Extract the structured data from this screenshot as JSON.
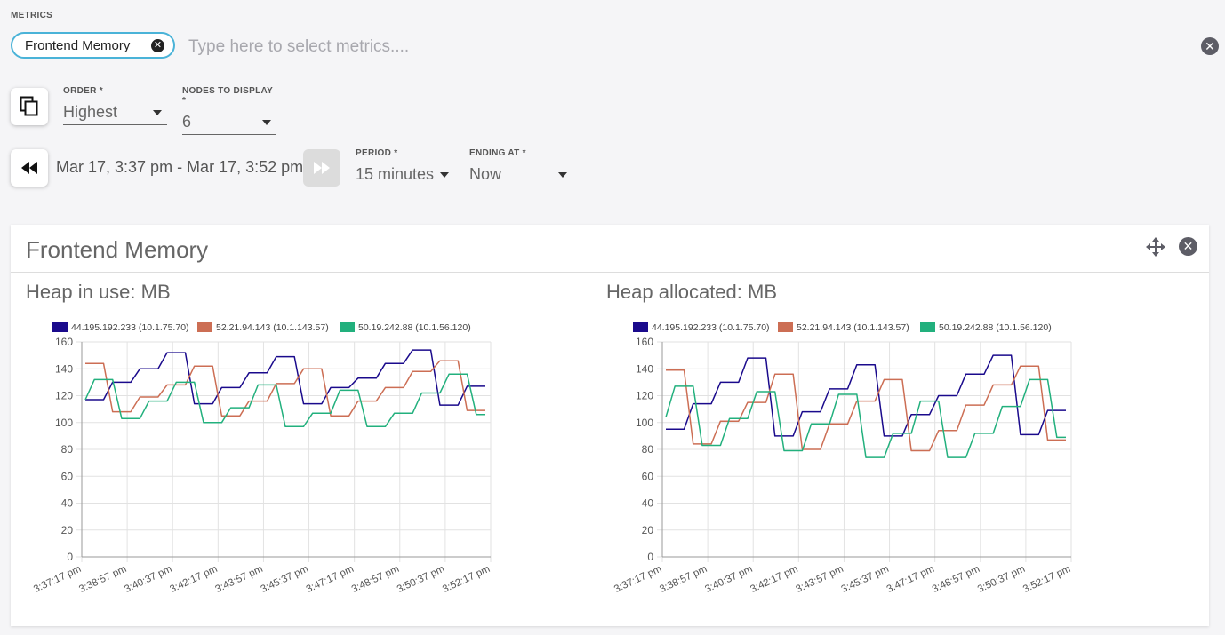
{
  "metrics": {
    "label": "METRICS",
    "chip": "Frontend Memory",
    "placeholder": "Type here to select metrics...."
  },
  "order": {
    "label": "ORDER *",
    "value": "Highest"
  },
  "nodes": {
    "label": "NODES TO DISPLAY *",
    "value": "6"
  },
  "time_range": "Mar 17, 3:37 pm - Mar 17, 3:52 pm",
  "period": {
    "label": "PERIOD *",
    "value": "15 minutes"
  },
  "ending": {
    "label": "ENDING AT *",
    "value": "Now"
  },
  "card": {
    "title": "Frontend Memory"
  },
  "colors": {
    "s1": "#1a0a8c",
    "s2": "#cc6e54",
    "s3": "#22b07d",
    "chip_border": "#4ab3d8"
  },
  "icons": [
    "copy-icon",
    "rewind-icon",
    "fast-forward-icon",
    "move-icon",
    "close-icon"
  ],
  "chart_data": [
    {
      "type": "line",
      "title": "Heap in use: MB",
      "ylim": [
        0,
        160
      ],
      "yticks": [
        0,
        20,
        40,
        60,
        80,
        100,
        120,
        140,
        160
      ],
      "xticks": [
        "3:37:17 pm",
        "3:38:57 pm",
        "3:40:37 pm",
        "3:42:17 pm",
        "3:43:57 pm",
        "3:45:37 pm",
        "3:47:17 pm",
        "3:48:57 pm",
        "3:50:37 pm",
        "3:52:17 pm"
      ],
      "grid": true,
      "legend_position": "top",
      "series": [
        {
          "name": "44.195.192.233 (10.1.75.70)",
          "values": [
            117,
            117,
            117,
            130,
            130,
            130,
            140,
            140,
            140,
            152,
            152,
            152,
            114,
            114,
            114,
            126,
            126,
            126,
            137,
            137,
            137,
            149,
            149,
            149,
            114,
            114,
            114,
            126,
            126,
            126,
            133,
            133,
            133,
            144,
            144,
            144,
            154,
            154,
            154,
            113,
            113,
            113,
            127,
            127,
            127
          ]
        },
        {
          "name": "52.21.94.143 (10.1.143.57)",
          "values": [
            144,
            144,
            144,
            108,
            108,
            108,
            119,
            119,
            119,
            128,
            128,
            128,
            142,
            142,
            142,
            105,
            105,
            105,
            116,
            116,
            116,
            129,
            129,
            129,
            140,
            140,
            140,
            105,
            105,
            105,
            116,
            116,
            116,
            126,
            126,
            126,
            138,
            138,
            138,
            146,
            146,
            146,
            109,
            109,
            109
          ]
        },
        {
          "name": "50.19.242.88 (10.1.56.120)",
          "values": [
            117,
            132,
            132,
            132,
            103,
            103,
            103,
            116,
            116,
            116,
            130,
            130,
            130,
            100,
            100,
            100,
            111,
            111,
            111,
            128,
            128,
            128,
            97,
            97,
            97,
            107,
            107,
            107,
            124,
            124,
            124,
            97,
            97,
            97,
            107,
            107,
            107,
            122,
            122,
            122,
            136,
            136,
            136,
            106,
            106
          ]
        }
      ]
    },
    {
      "type": "line",
      "title": "Heap allocated: MB",
      "ylim": [
        0,
        160
      ],
      "yticks": [
        0,
        20,
        40,
        60,
        80,
        100,
        120,
        140,
        160
      ],
      "xticks": [
        "3:37:17 pm",
        "3:38:57 pm",
        "3:40:37 pm",
        "3:42:17 pm",
        "3:43:57 pm",
        "3:45:37 pm",
        "3:47:17 pm",
        "3:48:57 pm",
        "3:50:37 pm",
        "3:52:17 pm"
      ],
      "grid": true,
      "legend_position": "top",
      "series": [
        {
          "name": "44.195.192.233 (10.1.75.70)",
          "values": [
            95,
            95,
            95,
            114,
            114,
            114,
            130,
            130,
            130,
            148,
            148,
            148,
            90,
            90,
            90,
            108,
            108,
            108,
            125,
            125,
            125,
            143,
            143,
            143,
            90,
            90,
            90,
            106,
            106,
            106,
            120,
            120,
            120,
            136,
            136,
            136,
            150,
            150,
            150,
            91,
            91,
            91,
            109,
            109,
            109
          ]
        },
        {
          "name": "52.21.94.143 (10.1.143.57)",
          "values": [
            139,
            139,
            139,
            84,
            84,
            84,
            101,
            101,
            101,
            115,
            115,
            115,
            136,
            136,
            136,
            80,
            80,
            80,
            99,
            99,
            99,
            116,
            116,
            116,
            132,
            132,
            132,
            79,
            79,
            79,
            94,
            94,
            94,
            113,
            113,
            113,
            128,
            128,
            128,
            142,
            142,
            142,
            87,
            87,
            87
          ]
        },
        {
          "name": "50.19.242.88 (10.1.56.120)",
          "values": [
            104,
            127,
            127,
            127,
            83,
            83,
            83,
            103,
            103,
            103,
            123,
            123,
            123,
            79,
            79,
            79,
            99,
            99,
            99,
            121,
            121,
            121,
            74,
            74,
            74,
            92,
            92,
            92,
            116,
            116,
            116,
            74,
            74,
            74,
            92,
            92,
            92,
            112,
            112,
            112,
            132,
            132,
            132,
            89,
            89
          ]
        }
      ]
    }
  ]
}
